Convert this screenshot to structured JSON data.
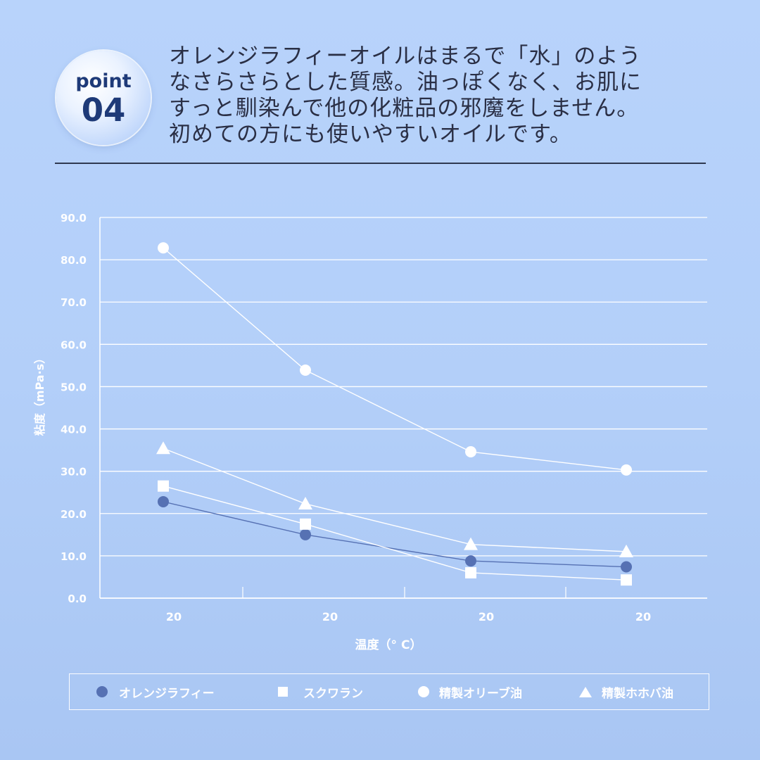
{
  "badge": {
    "word": "point",
    "number": "04"
  },
  "headline": {
    "lines": [
      "オレンジラフィーオイルはまるで「水」のよう",
      "なさらさらとした質感。油っぽくなく、お肌に",
      "すっと馴染んで他の化粧品の邪魔をしません。",
      "初めての方にも使いやすいオイルです。"
    ]
  },
  "chart_data": {
    "type": "line",
    "title": "",
    "xlabel": "温度（° C）",
    "ylabel": "粘度（mPa·s）",
    "ylim": [
      0,
      90
    ],
    "y_ticks": [
      "0.0",
      "10.0",
      "20.0",
      "30.0",
      "40.0",
      "50.0",
      "60.0",
      "70.0",
      "80.0",
      "90.0"
    ],
    "categories": [
      "20",
      "20",
      "20",
      "20"
    ],
    "grid": true,
    "legend_position": "bottom",
    "series": [
      {
        "name": "オレンジラフィー",
        "marker": "circle-filled",
        "color": "#5671b3",
        "values": [
          22.8,
          15.0,
          8.8,
          7.4
        ]
      },
      {
        "name": "スクワラン",
        "marker": "square",
        "color": "#ffffff",
        "values": [
          26.5,
          17.5,
          6.0,
          4.3
        ]
      },
      {
        "name": "精製オリーブ油",
        "marker": "circle",
        "color": "#ffffff",
        "values": [
          82.8,
          53.9,
          34.6,
          30.3
        ]
      },
      {
        "name": "精製ホホバ油",
        "marker": "triangle",
        "color": "#ffffff",
        "values": [
          35.4,
          22.3,
          12.7,
          11.0
        ]
      }
    ]
  },
  "colors": {
    "accent": "#1e3a78",
    "text": "#2a2f45",
    "grid": "#ffffff",
    "series_dark": "#5671b3"
  }
}
